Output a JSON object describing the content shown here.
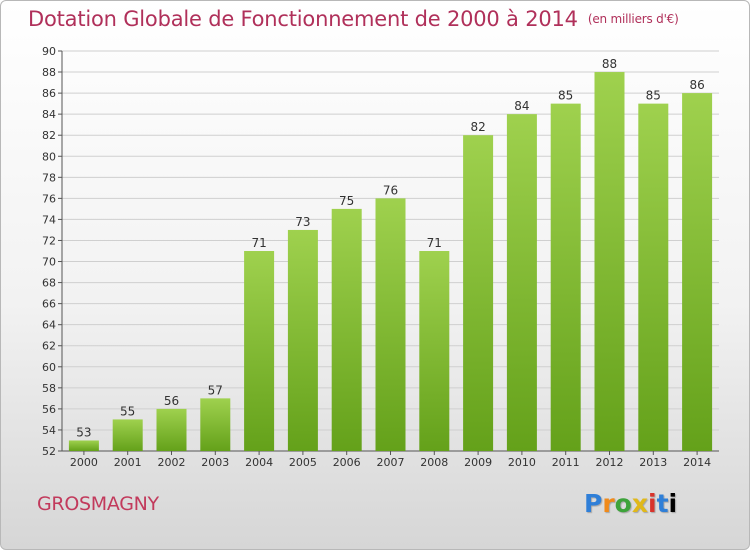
{
  "header": {
    "title": "Dotation Globale de Fonctionnement de 2000 à 2014",
    "subtitle": "(en milliers d'€)"
  },
  "footer": {
    "commune": "GROSMAGNY",
    "logo": "Proxiti"
  },
  "colors": {
    "title": "#b0305a",
    "bar_light": "#9fd14e",
    "bar_dark": "#64a11a",
    "grid": "#cfcfcf"
  },
  "chart_data": {
    "type": "bar",
    "categories": [
      "2000",
      "2001",
      "2002",
      "2003",
      "2004",
      "2005",
      "2006",
      "2007",
      "2008",
      "2009",
      "2010",
      "2011",
      "2012",
      "2013",
      "2014"
    ],
    "values": [
      53,
      55,
      56,
      57,
      71,
      73,
      75,
      76,
      71,
      82,
      84,
      85,
      88,
      85,
      86
    ],
    "ylim": [
      52,
      90
    ],
    "yticks": [
      52,
      54,
      56,
      58,
      60,
      62,
      64,
      66,
      68,
      70,
      72,
      74,
      76,
      78,
      80,
      82,
      84,
      86,
      88,
      90
    ],
    "grid": true,
    "data_labels": true
  }
}
